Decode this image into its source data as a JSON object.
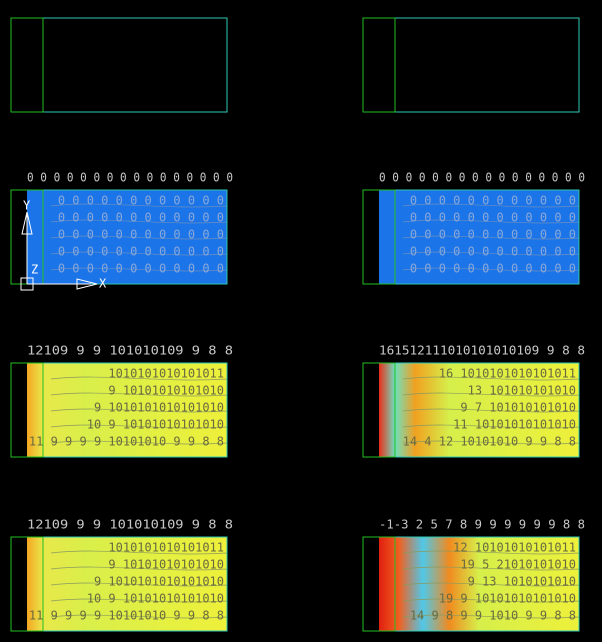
{
  "panels": [
    {
      "top_label": null,
      "rows": []
    },
    {
      "top_label": null,
      "rows": []
    },
    {
      "top_label": "0 0 0 0 0 0 0 0 0 0 0 0 0 0 0 0",
      "rows": [
        "0 0 0 0 0 0 0 0 0 0 0 0",
        "0 0 0 0 0 0 0 0 0 0 0 0",
        "0 0 0 0 0 0 0 0 0 0 0 0",
        "0 0 0 0 0 0 0 0 0 0 0 0",
        "0 0 0 0 0 0 0 0 0 0 0 0"
      ],
      "axis_labels": [
        "Y",
        "Z",
        "X"
      ]
    },
    {
      "top_label": "0 0 0 0 0 0 0 0 0 0 0 0 0 0 0 0",
      "rows": [
        "0 0 0 0 0 0 0 0 0 0 0 0",
        "0 0 0 0 0 0 0 0 0 0 0 0",
        "0 0 0 0 0 0 0 0 0 0 0 0",
        "0 0 0 0 0 0 0 0 0 0 0 0",
        "0 0 0 0 0 0 0 0 0 0 0 0"
      ]
    },
    {
      "top_label": "12109 9 9 101010109 9 8 8",
      "rows": [
        "1010101010101011",
        "9 10101010101010",
        "9 1010101010101010",
        "10 9 10101010101010",
        "11 9 9 9 9 10101010 9 9 8 8"
      ]
    },
    {
      "top_label": "161512111010101010109 9 8 8",
      "rows": [
        "16 1010101010101011",
        "13 101010101010",
        "9 7 101010101010",
        "11 10101010101010",
        "14 4 12 10101010 9 9 8 8"
      ]
    },
    {
      "top_label": "12109 9 9 101010109 9 8 8",
      "rows": [
        "1010101010101011",
        "9 10101010101010",
        "9 1010101010101010",
        "10 9 10101010101010",
        "11 9 9 9 9 10101010 9 9 8 8"
      ]
    },
    {
      "top_label": "-1-3 2 5 7 8 9 9 9 9 9 9 8 8",
      "rows": [
        "12 10101010101011",
        "19 5 21010101010",
        "9 13 1010101010",
        "19 9 10101010101010",
        "14 9 8 9 9 1010 9 9 8 8"
      ]
    }
  ]
}
